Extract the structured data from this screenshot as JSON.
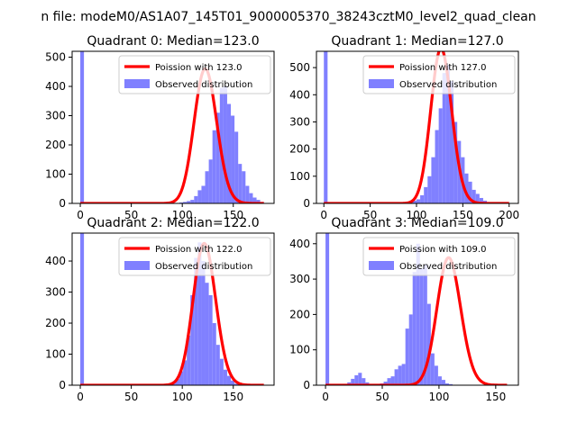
{
  "figure": {
    "suptitle": "n file: modeM0/AS1A07_145T01_9000005370_38243cztM0_level2_quad_clean"
  },
  "colors": {
    "poisson": "#ff0000",
    "observed": "#8080ff",
    "spines": "#000000"
  },
  "chart_data": [
    {
      "type": "bar",
      "title": "Quadrant 0: Median=123.0",
      "xlim": [
        -8,
        190
      ],
      "ylim": [
        0,
        520
      ],
      "xticks": [
        0,
        50,
        100,
        150
      ],
      "yticks": [
        0,
        100,
        200,
        300,
        400,
        500
      ],
      "legend": {
        "placement": "upper right",
        "entries": [
          "Poission with 123.0",
          "Observed distribution"
        ]
      },
      "median": 123.0,
      "poisson_range": [
        0,
        180
      ],
      "histogram": {
        "bin_width": 3.6,
        "edges_start": 0,
        "counts": [
          520,
          0,
          0,
          0,
          0,
          0,
          0,
          0,
          0,
          0,
          0,
          0,
          0,
          0,
          0,
          0,
          0,
          0,
          0,
          0,
          0,
          0,
          0,
          0,
          0,
          0,
          0,
          3,
          5,
          8,
          12,
          25,
          45,
          60,
          110,
          150,
          250,
          310,
          395,
          400,
          340,
          300,
          245,
          135,
          110,
          60,
          35,
          20,
          12,
          5
        ]
      }
    },
    {
      "type": "bar",
      "title": "Quadrant 1: Median=127.0",
      "xlim": [
        -8,
        210
      ],
      "ylim": [
        0,
        560
      ],
      "xticks": [
        0,
        50,
        100,
        150,
        200
      ],
      "yticks": [
        0,
        100,
        200,
        300,
        400,
        500
      ],
      "legend": {
        "placement": "upper right",
        "entries": [
          "Poission with 127.0",
          "Observed distribution"
        ]
      },
      "median": 127.0,
      "poisson_range": [
        0,
        200
      ],
      "histogram": {
        "bin_width": 4.0,
        "edges_start": 0,
        "counts": [
          560,
          0,
          0,
          0,
          0,
          0,
          0,
          0,
          0,
          0,
          0,
          0,
          0,
          0,
          0,
          0,
          0,
          0,
          0,
          0,
          0,
          0,
          2,
          5,
          10,
          15,
          30,
          60,
          100,
          170,
          270,
          350,
          480,
          510,
          450,
          300,
          230,
          170,
          110,
          80,
          50,
          35,
          20,
          10,
          5,
          3,
          2,
          1,
          0,
          0
        ]
      }
    },
    {
      "type": "bar",
      "title": "Quadrant 2: Median=122.0",
      "xlim": [
        -8,
        190
      ],
      "ylim": [
        0,
        490
      ],
      "xticks": [
        0,
        50,
        100,
        150
      ],
      "yticks": [
        0,
        100,
        200,
        300,
        400
      ],
      "legend": {
        "placement": "upper right",
        "entries": [
          "Poission with 122.0",
          "Observed distribution"
        ]
      },
      "median": 122.0,
      "poisson_range": [
        0,
        180
      ],
      "histogram": {
        "bin_width": 3.6,
        "edges_start": 0,
        "counts": [
          490,
          0,
          0,
          0,
          0,
          0,
          0,
          0,
          0,
          0,
          0,
          0,
          0,
          0,
          0,
          0,
          0,
          0,
          0,
          0,
          0,
          0,
          2,
          3,
          5,
          10,
          20,
          45,
          80,
          160,
          290,
          410,
          460,
          400,
          330,
          290,
          200,
          130,
          85,
          50,
          30,
          15,
          5,
          3,
          1,
          0,
          0,
          0,
          0,
          0
        ]
      }
    },
    {
      "type": "bar",
      "title": "Quadrant 3: Median=109.0",
      "xlim": [
        -8,
        170
      ],
      "ylim": [
        0,
        430
      ],
      "xticks": [
        0,
        50,
        100,
        150
      ],
      "yticks": [
        0,
        100,
        200,
        300,
        400
      ],
      "legend": {
        "placement": "upper right",
        "entries": [
          "Poission with 109.0",
          "Observed distribution"
        ]
      },
      "median": 109.0,
      "poisson_range": [
        0,
        160
      ],
      "histogram": {
        "bin_width": 3.2,
        "edges_start": 0,
        "counts": [
          430,
          0,
          0,
          0,
          0,
          0,
          8,
          18,
          28,
          35,
          20,
          8,
          3,
          2,
          3,
          5,
          10,
          20,
          25,
          45,
          55,
          60,
          160,
          200,
          320,
          400,
          330,
          340,
          230,
          90,
          55,
          25,
          15,
          5,
          3,
          1,
          0,
          0,
          0,
          0,
          0,
          0,
          0,
          0,
          0,
          0,
          0,
          0,
          0,
          0
        ]
      }
    }
  ]
}
